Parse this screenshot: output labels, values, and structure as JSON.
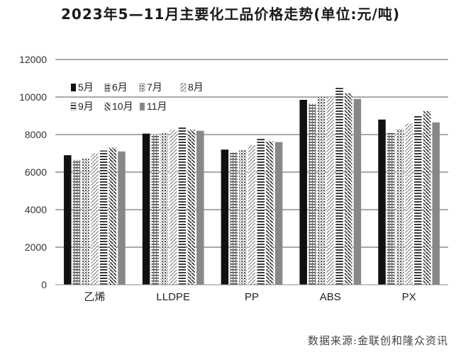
{
  "chart_data": {
    "type": "bar",
    "title": "2023年5—11月主要化工品价格走势(单位:元/吨)",
    "categories": [
      "乙烯",
      "LLDPE",
      "PP",
      "ABS",
      "PX"
    ],
    "ylim": [
      0,
      12000
    ],
    "yticks": [
      "0",
      "2000",
      "4000",
      "6000",
      "8000",
      "10000",
      "12000"
    ],
    "grid": true,
    "legend_position": "top-left",
    "series": [
      {
        "name": "5月",
        "values": [
          6900,
          8050,
          7200,
          9850,
          8800
        ],
        "pattern": "solid",
        "color": "#111111"
      },
      {
        "name": "6月",
        "values": [
          6650,
          8000,
          7050,
          9650,
          8100
        ],
        "pattern": "hgrid",
        "color": "#555555"
      },
      {
        "name": "7月",
        "values": [
          6750,
          8100,
          7200,
          10000,
          8300
        ],
        "pattern": "dots",
        "color": "#555555"
      },
      {
        "name": "8月",
        "values": [
          7000,
          8250,
          7450,
          10000,
          8600
        ],
        "pattern": "diag",
        "color": "#666666"
      },
      {
        "name": "9月",
        "values": [
          7150,
          8450,
          7850,
          10550,
          9050
        ],
        "pattern": "hstripe",
        "color": "#444444"
      },
      {
        "name": "10月",
        "values": [
          7300,
          8250,
          7650,
          10200,
          9250
        ],
        "pattern": "diag2",
        "color": "#333333"
      },
      {
        "name": "11月",
        "values": [
          7100,
          8200,
          7600,
          9900,
          8650
        ],
        "pattern": "solid",
        "color": "#888888"
      }
    ]
  },
  "source": "数据来源:金联创和隆众资讯"
}
